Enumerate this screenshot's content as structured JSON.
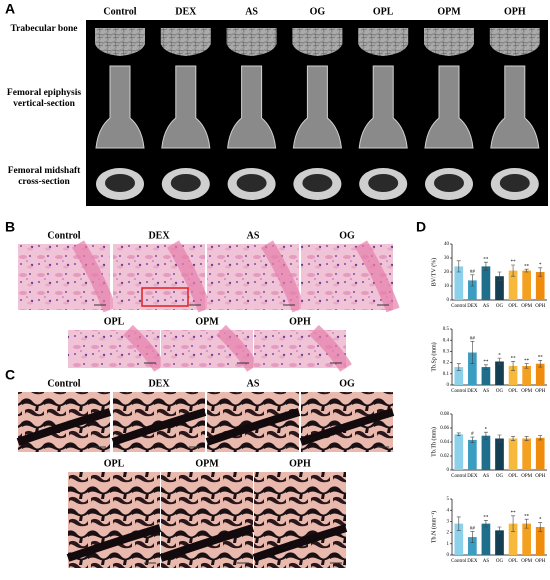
{
  "panel_a": {
    "label": "A",
    "columns": [
      "Control",
      "DEX",
      "AS",
      "OG",
      "OPL",
      "OPM",
      "OPH"
    ],
    "rows": [
      "Trabecular bone",
      "Femoral epiphysis vertical-section",
      "Femoral midshaft cross-section"
    ]
  },
  "panel_b": {
    "label": "B",
    "images": [
      "Control",
      "DEX",
      "AS",
      "OG",
      "OPL",
      "OPM",
      "OPH"
    ]
  },
  "panel_c": {
    "label": "C",
    "images": [
      "Control",
      "DEX",
      "AS",
      "OG",
      "OPL",
      "OPM",
      "OPH"
    ]
  },
  "panel_d": {
    "label": "D"
  },
  "chart_data": [
    {
      "type": "bar",
      "ylabel": "BV/TV (%)",
      "categories": [
        "Control",
        "DEX",
        "AS",
        "OG",
        "OPL",
        "OPM",
        "OPH"
      ],
      "values": [
        24,
        14,
        24,
        17,
        21,
        21,
        20
      ],
      "errors": [
        4,
        4,
        3,
        3,
        4,
        1,
        3
      ],
      "significance": [
        null,
        "##",
        "**",
        null,
        "**",
        "**",
        "*"
      ],
      "colors": [
        "#8dd0ea",
        "#3b9dc2",
        "#1f6e8c",
        "#143f53",
        "#f7b93c",
        "#f4a020",
        "#f08c0c"
      ],
      "ylim": [
        0,
        40
      ],
      "yticks": [
        0,
        10,
        20,
        30,
        40
      ]
    },
    {
      "type": "bar",
      "ylabel": "Tb.Sp (mm)",
      "categories": [
        "Control",
        "DEX",
        "AS",
        "OG",
        "OPL",
        "OPM",
        "OPH"
      ],
      "values": [
        0.16,
        0.29,
        0.16,
        0.21,
        0.17,
        0.17,
        0.19
      ],
      "errors": [
        0.03,
        0.1,
        0.02,
        0.03,
        0.04,
        0.02,
        0.03
      ],
      "significance": [
        null,
        "##",
        "**",
        "*",
        "**",
        "**",
        "**"
      ],
      "colors": [
        "#8dd0ea",
        "#3b9dc2",
        "#1f6e8c",
        "#143f53",
        "#f7b93c",
        "#f4a020",
        "#f08c0c"
      ],
      "ylim": [
        0,
        0.5
      ],
      "yticks": [
        0,
        0.1,
        0.2,
        0.3,
        0.4,
        0.5
      ]
    },
    {
      "type": "bar",
      "ylabel": "Tb.Th (mm)",
      "categories": [
        "Control",
        "DEX",
        "AS",
        "OG",
        "OPL",
        "OPM",
        "OPH"
      ],
      "values": [
        0.051,
        0.043,
        0.049,
        0.045,
        0.045,
        0.045,
        0.046
      ],
      "errors": [
        0.002,
        0.004,
        0.005,
        0.005,
        0.003,
        0.003,
        0.003
      ],
      "significance": [
        null,
        "#",
        "*",
        null,
        null,
        null,
        null
      ],
      "colors": [
        "#8dd0ea",
        "#3b9dc2",
        "#1f6e8c",
        "#143f53",
        "#f7b93c",
        "#f4a020",
        "#f08c0c"
      ],
      "ylim": [
        0,
        0.08
      ],
      "yticks": [
        0,
        0.02,
        0.04,
        0.06,
        0.08
      ]
    },
    {
      "type": "bar",
      "ylabel": "Tb.N (mm⁻¹)",
      "categories": [
        "Control",
        "DEX",
        "AS",
        "OG",
        "OPL",
        "OPM",
        "OPH"
      ],
      "values": [
        2.8,
        1.6,
        2.8,
        2.2,
        2.8,
        2.8,
        2.5
      ],
      "errors": [
        0.6,
        0.5,
        0.3,
        0.3,
        0.7,
        0.4,
        0.4
      ],
      "significance": [
        null,
        "##",
        "**",
        null,
        "**",
        "**",
        "*"
      ],
      "colors": [
        "#8dd0ea",
        "#3b9dc2",
        "#1f6e8c",
        "#143f53",
        "#f7b93c",
        "#f4a020",
        "#f08c0c"
      ],
      "ylim": [
        0,
        5
      ],
      "yticks": [
        0,
        1,
        2,
        3,
        4,
        5
      ]
    }
  ]
}
